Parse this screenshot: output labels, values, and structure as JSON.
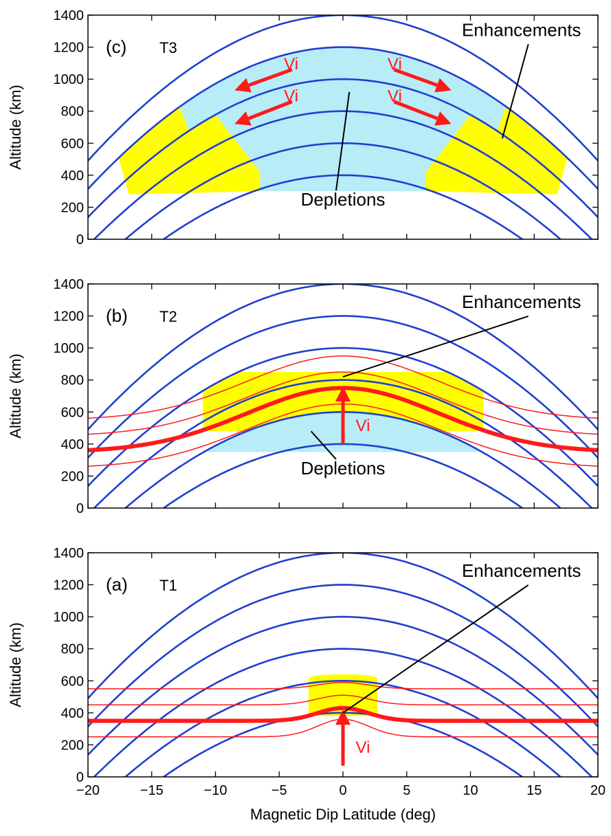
{
  "chart_data": [
    {
      "type": "line",
      "panel_label": "(c)",
      "time_label": "T3",
      "xlabel": "",
      "ylabel": "Altitude (km)",
      "xlim": [
        -20,
        20
      ],
      "ylim": [
        0,
        1400
      ],
      "xticks": [
        -20,
        -15,
        -10,
        -5,
        0,
        5,
        10,
        15,
        20
      ],
      "yticks": [
        "0",
        "200",
        "400",
        "600",
        "800",
        "1000",
        "1200",
        "1400"
      ],
      "field_line_apex_km": [
        400,
        600,
        800,
        1000,
        1200,
        1400
      ],
      "depletion_region": {
        "apex_inner_km": 600,
        "apex_outer_km": 1200,
        "floor_km": 300,
        "lat_range_deg": [
          -16.5,
          16.5
        ]
      },
      "enhancement_regions": [
        {
          "lat_range_deg": [
            -16.5,
            -6.5
          ],
          "alt_range_km": [
            280,
            700
          ]
        },
        {
          "lat_range_deg": [
            6.5,
            16.5
          ],
          "alt_range_km": [
            280,
            700
          ]
        }
      ],
      "annotations": [
        {
          "text": "Enhancements",
          "x": 14,
          "y": 1270,
          "arrow_to": [
            12.5,
            630
          ]
        },
        {
          "text": "Depletions",
          "x": 0,
          "y": 210,
          "arrow_to": [
            0.5,
            920
          ]
        },
        {
          "text": "Vi",
          "x": -3.5,
          "y": 1060
        },
        {
          "text": "Vi",
          "x": -3.5,
          "y": 860
        },
        {
          "text": "Vi",
          "x": 3.5,
          "y": 1060
        },
        {
          "text": "Vi",
          "x": 3.5,
          "y": 860
        }
      ],
      "velocity_arrows": [
        {
          "from": [
            -4,
            1060
          ],
          "to": [
            -8.5,
            930
          ]
        },
        {
          "from": [
            -4,
            860
          ],
          "to": [
            -8.5,
            720
          ]
        },
        {
          "from": [
            4,
            1060
          ],
          "to": [
            8.5,
            930
          ]
        },
        {
          "from": [
            4,
            860
          ],
          "to": [
            8.5,
            720
          ]
        }
      ]
    },
    {
      "type": "line",
      "panel_label": "(b)",
      "time_label": "T2",
      "xlabel": "",
      "ylabel": "Altitude (km)",
      "xlim": [
        -20,
        20
      ],
      "ylim": [
        0,
        1400
      ],
      "xticks": [
        -20,
        -15,
        -10,
        -5,
        0,
        5,
        10,
        15,
        20
      ],
      "yticks": [
        "0",
        "200",
        "400",
        "600",
        "800",
        "1000",
        "1200",
        "1400"
      ],
      "field_line_apex_km": [
        400,
        600,
        800,
        1000,
        1200,
        1400
      ],
      "density_contours": {
        "base_km": [
          250,
          350,
          450,
          550
        ],
        "peak_km": [
          650,
          750,
          850,
          950
        ],
        "highlighted_base_km": 350
      },
      "depletion_region": {
        "apex_inner_km": 400,
        "apex_outer_km": 600,
        "floor_km": 350,
        "lat_range_deg": [
          -11.5,
          11.5
        ]
      },
      "enhancement_region": {
        "apex_inner_km": 600,
        "apex_outer_km": 850,
        "lat_range_deg": [
          -11,
          11
        ]
      },
      "annotations": [
        {
          "text": "Enhancements",
          "x": 14,
          "y": 1250,
          "arrow_to": [
            0,
            820
          ]
        },
        {
          "text": "Depletions",
          "x": 0,
          "y": 210,
          "arrow_to": [
            -2.5,
            480
          ]
        },
        {
          "text": "Vi",
          "x": 1,
          "y": 480
        }
      ],
      "velocity_arrows": [
        {
          "from": [
            0,
            400
          ],
          "to": [
            0,
            760
          ]
        }
      ]
    },
    {
      "type": "line",
      "panel_label": "(a)",
      "time_label": "T1",
      "xlabel": "Magnetic Dip Latitude (deg)",
      "ylabel": "Altitude (km)",
      "xlim": [
        -20,
        20
      ],
      "ylim": [
        0,
        1400
      ],
      "xticks": [
        "−20",
        "−15",
        "−10",
        "−5",
        "0",
        "5",
        "10",
        "15",
        "20"
      ],
      "yticks": [
        "0",
        "200",
        "400",
        "600",
        "800",
        "1000",
        "1200",
        "1400"
      ],
      "field_line_apex_km": [
        400,
        600,
        800,
        1000,
        1200,
        1400
      ],
      "density_contours": {
        "base_km": [
          250,
          350,
          450,
          550
        ],
        "peak_km": [
          360,
          430,
          510,
          590
        ],
        "highlighted_base_km": 350
      },
      "enhancement_region": {
        "lat_range_deg": [
          -2.7,
          2.7
        ],
        "alt_range_km": [
          380,
          640
        ]
      },
      "annotations": [
        {
          "text": "Enhancements",
          "x": 14,
          "y": 1250,
          "arrow_to": [
            0,
            400
          ]
        },
        {
          "text": "Vi",
          "x": 1,
          "y": 150
        }
      ],
      "velocity_arrows": [
        {
          "from": [
            0,
            70
          ],
          "to": [
            0,
            420
          ]
        }
      ]
    }
  ],
  "colors": {
    "field_line": "#1f3fcf",
    "contour": "#ff1a1a",
    "arrow": "#ff1a1a",
    "depletion": "#b8ecf6",
    "enhancement": "#ffff00",
    "axis": "#000000"
  }
}
